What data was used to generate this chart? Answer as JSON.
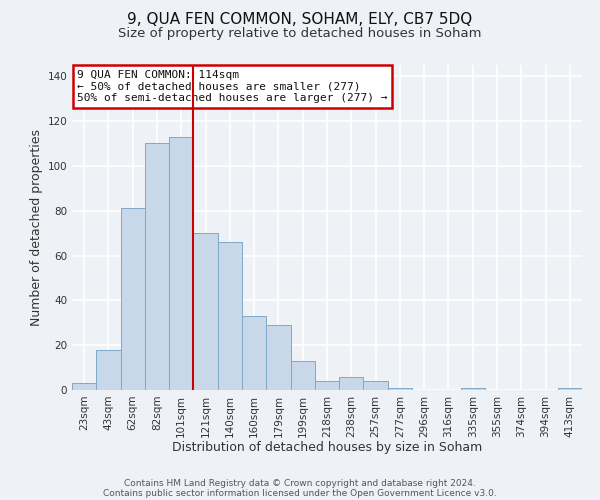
{
  "title": "9, QUA FEN COMMON, SOHAM, ELY, CB7 5DQ",
  "subtitle": "Size of property relative to detached houses in Soham",
  "xlabel": "Distribution of detached houses by size in Soham",
  "ylabel": "Number of detached properties",
  "bar_labels": [
    "23sqm",
    "43sqm",
    "62sqm",
    "82sqm",
    "101sqm",
    "121sqm",
    "140sqm",
    "160sqm",
    "179sqm",
    "199sqm",
    "218sqm",
    "238sqm",
    "257sqm",
    "277sqm",
    "296sqm",
    "316sqm",
    "335sqm",
    "355sqm",
    "374sqm",
    "394sqm",
    "413sqm"
  ],
  "bar_values": [
    3,
    18,
    81,
    110,
    113,
    70,
    66,
    33,
    29,
    13,
    4,
    6,
    4,
    1,
    0,
    0,
    1,
    0,
    0,
    0,
    1
  ],
  "bar_color": "#c8d8e8",
  "bar_edge_color": "#7fa8c8",
  "vline_color": "#cc0000",
  "vline_bar_index": 5,
  "annotation_title": "9 QUA FEN COMMON: 114sqm",
  "annotation_line1": "← 50% of detached houses are smaller (277)",
  "annotation_line2": "50% of semi-detached houses are larger (277) →",
  "annotation_box_color": "#cc0000",
  "ylim": [
    0,
    145
  ],
  "yticks": [
    0,
    20,
    40,
    60,
    80,
    100,
    120,
    140
  ],
  "footer1": "Contains HM Land Registry data © Crown copyright and database right 2024.",
  "footer2": "Contains public sector information licensed under the Open Government Licence v3.0.",
  "bg_color": "#eef2f7",
  "grid_color": "#ffffff",
  "title_fontsize": 11,
  "subtitle_fontsize": 9.5,
  "label_fontsize": 9,
  "tick_fontsize": 7.5,
  "footer_fontsize": 6.5
}
